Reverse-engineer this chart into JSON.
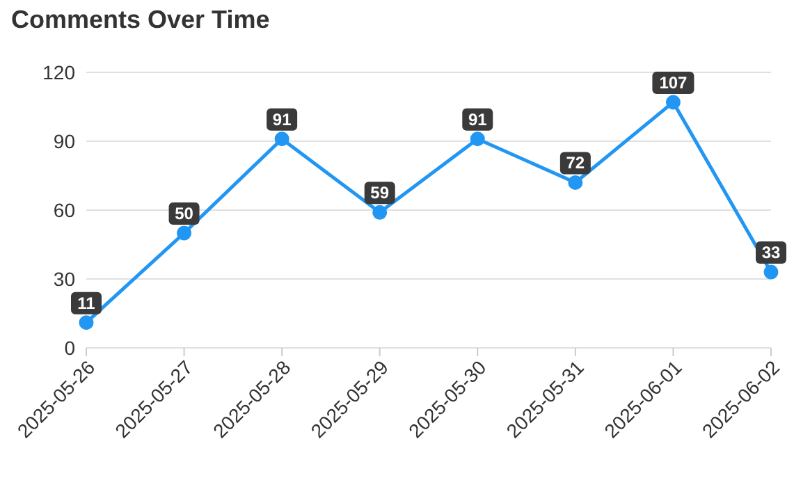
{
  "chart_data": {
    "type": "line",
    "title": "Comments Over Time",
    "categories": [
      "2025-05-26",
      "2025-05-27",
      "2025-05-28",
      "2025-05-29",
      "2025-05-30",
      "2025-05-31",
      "2025-06-01",
      "2025-06-02"
    ],
    "values": [
      11,
      50,
      91,
      59,
      91,
      72,
      107,
      33
    ],
    "color": "#2196f3",
    "ylim": [
      0,
      120
    ],
    "yticks": [
      0,
      30,
      60,
      90,
      120
    ],
    "grid": "y",
    "marker": "circle",
    "line_style": "solid",
    "data_labels": true
  }
}
